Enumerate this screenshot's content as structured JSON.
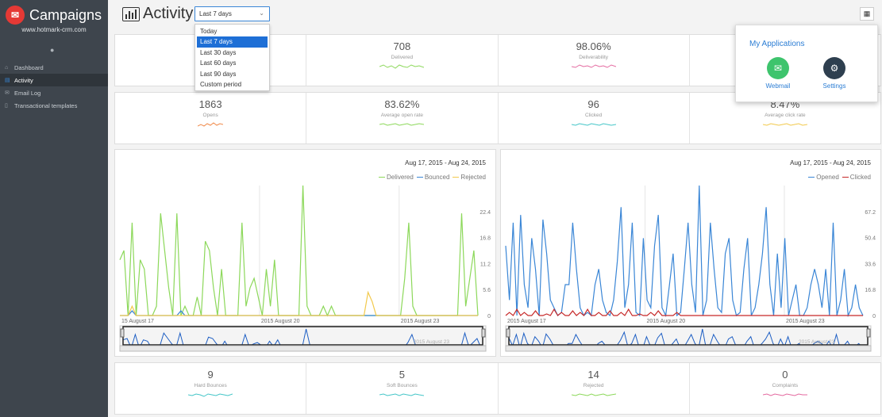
{
  "sidebar": {
    "brand": "Campaigns",
    "domain": "www.hotmark-crm.com",
    "items": [
      {
        "label": "Dashboard",
        "icon": "home-icon"
      },
      {
        "label": "Activity",
        "icon": "chart-icon"
      },
      {
        "label": "Email Log",
        "icon": "envelope-icon"
      },
      {
        "label": "Transactional templates",
        "icon": "document-icon"
      }
    ]
  },
  "header": {
    "title": "Activity",
    "selected_period": "Last 7 days",
    "period_options": [
      "Today",
      "Last 7 days",
      "Last 30 days",
      "Last 60 days",
      "Last 90 days",
      "Custom period"
    ]
  },
  "apps_menu": {
    "title": "My Applications",
    "apps": [
      {
        "label": "Webmail",
        "color": "#3ec46d"
      },
      {
        "label": "Settings",
        "color": "#2e3f4f"
      }
    ]
  },
  "stats_row1": [
    {
      "value": "",
      "label": ""
    },
    {
      "value": "708",
      "label": "Delivered",
      "color": "#8cd85a"
    },
    {
      "value": "98.06%",
      "label": "Deliverability",
      "color": "#e46aa0"
    },
    {
      "value": "",
      "label": ""
    }
  ],
  "stats_row2": [
    {
      "value": "1863",
      "label": "Opens",
      "color": "#f08a4a"
    },
    {
      "value": "83.62%",
      "label": "Average open rate",
      "color": "#8cd85a"
    },
    {
      "value": "96",
      "label": "Clicked",
      "color": "#45c6c8"
    },
    {
      "value": "8.47%",
      "label": "Average click rate",
      "color": "#f2c94c"
    }
  ],
  "stats_row3": [
    {
      "value": "9",
      "label": "Hard Bounces",
      "color": "#45c6c8"
    },
    {
      "value": "5",
      "label": "Soft Bounces",
      "color": "#45c6c8"
    },
    {
      "value": "14",
      "label": "Rejected",
      "color": "#8cd85a"
    },
    {
      "value": "0",
      "label": "Complaints",
      "color": "#e46aa0"
    }
  ],
  "chart_data": [
    {
      "type": "line",
      "range": "Aug 17, 2015  -  Aug 24, 2015",
      "yticks": [
        "22.4",
        "16.8",
        "11.2",
        "5.6",
        "0"
      ],
      "ylim": [
        0,
        28
      ],
      "xticks": [
        "15 August 17",
        "2015 August 20",
        "2015 August 23"
      ],
      "nav_xticks": [
        "2015 August 23"
      ],
      "series": [
        {
          "name": "Delivered",
          "color": "#8cd85a",
          "values": [
            12,
            14,
            0,
            20,
            0,
            12,
            10,
            0,
            0,
            2,
            22,
            14,
            6,
            0,
            22,
            0,
            2,
            0,
            0,
            4,
            0,
            16,
            14,
            6,
            0,
            10,
            0,
            0,
            0,
            0,
            20,
            2,
            6,
            8,
            4,
            0,
            10,
            2,
            12,
            0,
            0,
            0,
            0,
            0,
            0,
            28,
            2,
            0,
            0,
            0,
            2,
            0,
            2,
            0,
            0,
            0,
            0,
            0,
            0,
            0,
            0,
            0,
            0,
            0,
            0,
            0,
            0,
            0,
            0,
            0,
            8,
            20,
            2,
            0,
            0,
            0,
            0,
            0,
            0,
            0,
            0,
            0,
            0,
            0,
            22,
            2,
            8,
            14,
            0
          ]
        },
        {
          "name": "Bounced",
          "color": "#3a86d6",
          "values": [
            0,
            0,
            0,
            1,
            0,
            0,
            0,
            0,
            0,
            0,
            0,
            0,
            0,
            0,
            0,
            1,
            0,
            0,
            0,
            0,
            0,
            0,
            0,
            0,
            0,
            0,
            0,
            0,
            0,
            0,
            0,
            0,
            0,
            0,
            0,
            0,
            0,
            0,
            0,
            0,
            0,
            0,
            0,
            0,
            0,
            0,
            0,
            0,
            0,
            0,
            0,
            0,
            0,
            0,
            0,
            0,
            0,
            0,
            0,
            0,
            0,
            0,
            0,
            0,
            0,
            0,
            0,
            0,
            0,
            0,
            0,
            0,
            0,
            0,
            0,
            0,
            0,
            0,
            0,
            0,
            0,
            0,
            0,
            0,
            0,
            0,
            0,
            0,
            0
          ]
        },
        {
          "name": "Rejected",
          "color": "#f2c94c",
          "values": [
            0,
            0,
            0,
            2,
            0,
            0,
            0,
            0,
            0,
            0,
            0,
            0,
            0,
            0,
            0,
            0,
            0,
            0,
            0,
            0,
            0,
            0,
            0,
            0,
            0,
            0,
            0,
            0,
            0,
            0,
            0,
            0,
            0,
            0,
            0,
            0,
            0,
            0,
            0,
            0,
            0,
            0,
            0,
            0,
            0,
            0,
            0,
            0,
            0,
            0,
            0,
            0,
            0,
            0,
            0,
            0,
            0,
            0,
            0,
            0,
            0,
            5,
            3,
            0,
            0,
            0,
            0,
            0,
            0,
            0,
            0,
            0,
            0,
            0,
            0,
            0,
            0,
            0,
            0,
            0,
            0,
            0,
            0,
            0,
            0,
            0,
            0,
            0,
            0
          ]
        }
      ]
    },
    {
      "type": "line",
      "range": "Aug 17, 2015  -  Aug 24, 2015",
      "yticks": [
        "67.2",
        "50.4",
        "33.6",
        "16.8",
        "0"
      ],
      "ylim": [
        0,
        84
      ],
      "xticks": [
        "2015 August 17",
        "2015 August 20",
        "2015 August 23"
      ],
      "nav_xticks": [
        "2015 August 23"
      ],
      "series": [
        {
          "name": "Opened",
          "color": "#3a86d6",
          "values": [
            45,
            10,
            60,
            0,
            65,
            20,
            5,
            50,
            30,
            0,
            62,
            40,
            10,
            5,
            0,
            2,
            20,
            20,
            60,
            30,
            5,
            0,
            2,
            0,
            20,
            30,
            10,
            2,
            0,
            10,
            35,
            70,
            5,
            20,
            60,
            2,
            0,
            50,
            10,
            5,
            45,
            65,
            5,
            0,
            20,
            40,
            0,
            2,
            30,
            60,
            20,
            2,
            84,
            0,
            10,
            60,
            30,
            5,
            2,
            40,
            50,
            10,
            0,
            2,
            30,
            50,
            0,
            5,
            20,
            40,
            70,
            20,
            0,
            40,
            5,
            50,
            0,
            10,
            20,
            0,
            0,
            5,
            20,
            30,
            20,
            5,
            30,
            0,
            60,
            0,
            10,
            30,
            0,
            5,
            20,
            5,
            0
          ]
        },
        {
          "name": "Clicked",
          "color": "#c62828",
          "values": [
            0,
            2,
            0,
            4,
            0,
            2,
            0,
            0,
            3,
            0,
            0,
            1,
            0,
            4,
            0,
            2,
            0,
            0,
            3,
            0,
            2,
            0,
            4,
            0,
            0,
            2,
            0,
            0,
            3,
            0,
            0,
            2,
            0,
            4,
            0,
            0,
            1,
            0,
            0,
            2,
            0,
            3,
            0,
            0,
            0,
            0,
            2,
            0,
            0,
            0,
            0,
            0,
            0,
            0,
            0,
            0,
            0,
            0,
            0,
            0,
            0,
            0,
            0,
            0,
            0,
            0,
            0,
            0,
            0,
            0,
            0,
            0,
            0,
            0,
            0,
            0,
            0,
            0,
            0,
            0,
            0,
            0,
            0,
            0,
            0,
            0,
            0,
            0,
            0,
            0,
            0,
            0,
            0,
            0,
            0,
            0,
            0
          ]
        }
      ]
    }
  ]
}
